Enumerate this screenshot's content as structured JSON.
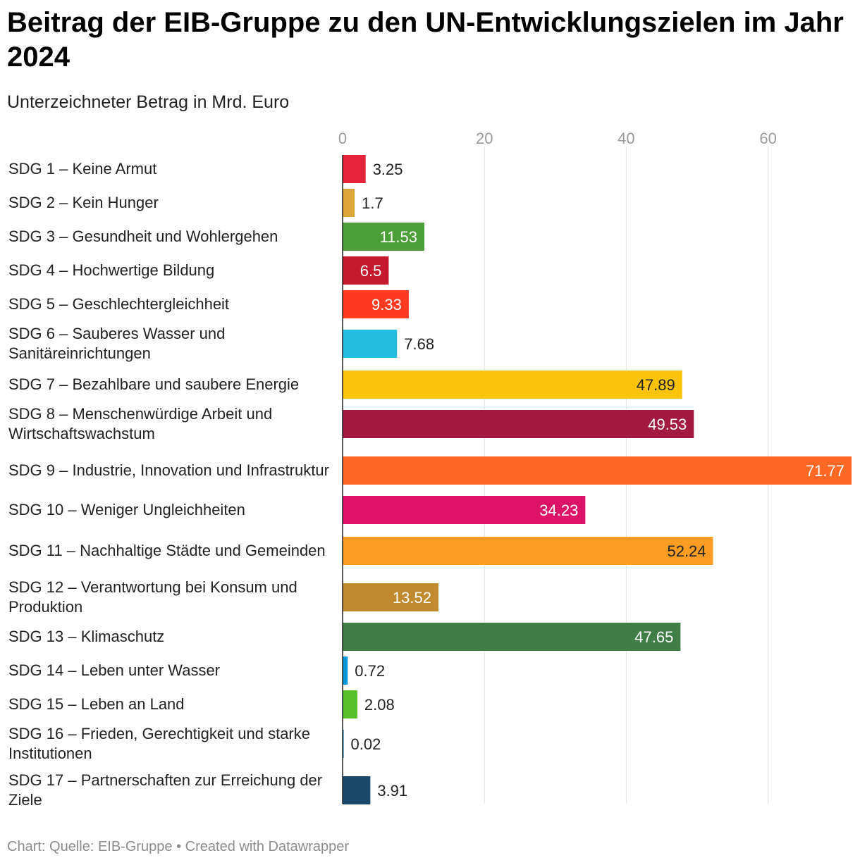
{
  "title": "Beitrag der EIB-Gruppe zu den UN-Entwicklungszielen im Jahr 2024",
  "subtitle": "Unterzeichneter Betrag in Mrd. Euro",
  "footer": "Chart: Quelle: EIB-Gruppe • Created with Datawrapper",
  "chart_data": {
    "type": "bar",
    "orientation": "horizontal",
    "title": "Beitrag der EIB-Gruppe zu den UN-Entwicklungszielen im Jahr 2024",
    "subtitle": "Unterzeichneter Betrag in Mrd. Euro",
    "xlim": [
      0,
      72
    ],
    "x_ticks": [
      0,
      20,
      40,
      60
    ],
    "grid": true,
    "categories": [
      "SDG 1 – Keine Armut",
      "SDG 2 – Kein Hunger",
      "SDG 3 – Gesundheit und Wohlergehen",
      "SDG 4 – Hochwertige Bildung",
      "SDG 5 – Geschlechtergleichheit",
      "SDG 6 – Sauberes Wasser und Sanitäreinrichtungen",
      "SDG 7 – Bezahlbare und saubere Energie",
      "SDG 8 – Menschenwürdige Arbeit und Wirtschaftswachstum",
      "SDG 9 – Industrie, Innovation und Infrastruktur",
      "SDG 10 – Weniger Ungleichheiten",
      "SDG 11 – Nachhaltige Städte und Gemeinden",
      "SDG 12 – Verantwortung bei Konsum und Produktion",
      "SDG 13 – Klimaschutz",
      "SDG 14 – Leben unter Wasser",
      "SDG 15 – Leben an Land",
      "SDG 16 – Frieden, Gerechtigkeit und starke Institutionen",
      "SDG 17 – Partnerschaften zur Erreichung der Ziele"
    ],
    "values": [
      3.25,
      1.7,
      11.53,
      6.5,
      9.33,
      7.68,
      47.89,
      49.53,
      71.77,
      34.23,
      52.24,
      13.52,
      47.65,
      0.72,
      2.08,
      0.02,
      3.91
    ],
    "value_labels": [
      "3.25",
      "1.7",
      "11.53",
      "6.5",
      "9.33",
      "7.68",
      "47.89",
      "49.53",
      "71.77",
      "34.23",
      "52.24",
      "13.52",
      "47.65",
      "0.72",
      "2.08",
      "0.02",
      "3.91"
    ],
    "colors": [
      "#e5243b",
      "#dda63a",
      "#4c9f38",
      "#c5192d",
      "#ff3a21",
      "#26bde2",
      "#fcc30b",
      "#a21942",
      "#fd6925",
      "#dd1367",
      "#fd9d24",
      "#bf8b2e",
      "#3f7e44",
      "#0a97d9",
      "#56c02b",
      "#00689d",
      "#19486a"
    ],
    "label_colors": [
      "#222222",
      "#222222",
      "#ffffff",
      "#ffffff",
      "#ffffff",
      "#222222",
      "#222222",
      "#ffffff",
      "#ffffff",
      "#ffffff",
      "#222222",
      "#ffffff",
      "#ffffff",
      "#222222",
      "#222222",
      "#222222",
      "#222222"
    ]
  }
}
